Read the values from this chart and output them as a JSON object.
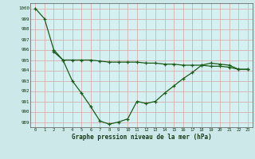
{
  "background_color": "#cce8e8",
  "plot_bg_color": "#d5f0f0",
  "grid_color": "#d8b0b0",
  "line_color": "#1a5c1a",
  "title": "Graphe pression niveau de la mer (hPa)",
  "ylim": [
    988.5,
    1000.5
  ],
  "xlim": [
    -0.5,
    23.5
  ],
  "yticks": [
    989,
    990,
    991,
    992,
    993,
    994,
    995,
    996,
    997,
    998,
    999,
    1000
  ],
  "xticks": [
    0,
    1,
    2,
    3,
    4,
    5,
    6,
    7,
    8,
    9,
    10,
    11,
    12,
    13,
    14,
    15,
    16,
    17,
    18,
    19,
    20,
    21,
    22,
    23
  ],
  "series1_x": [
    0,
    1,
    2,
    3,
    4,
    5,
    6,
    7,
    8,
    9,
    10,
    11,
    12,
    13,
    14,
    15,
    16,
    17,
    18,
    19,
    20,
    21,
    22,
    23
  ],
  "series1_y": [
    1000.0,
    999.0,
    996.0,
    995.0,
    993.0,
    991.8,
    990.5,
    989.1,
    988.8,
    989.0,
    989.3,
    991.0,
    990.8,
    991.0,
    991.8,
    992.5,
    993.2,
    993.8,
    994.5,
    994.7,
    994.6,
    994.5,
    994.1,
    994.1
  ],
  "series2_x": [
    2,
    3,
    4,
    5,
    6,
    7,
    8,
    9,
    10,
    11,
    12,
    13,
    14,
    15,
    16,
    17,
    18,
    19,
    20,
    21,
    22,
    23
  ],
  "series2_y": [
    995.8,
    995.0,
    995.0,
    995.0,
    995.0,
    994.9,
    994.8,
    994.8,
    994.8,
    994.8,
    994.7,
    994.7,
    994.6,
    994.6,
    994.5,
    994.5,
    994.5,
    994.4,
    994.4,
    994.3,
    994.1,
    994.1
  ]
}
